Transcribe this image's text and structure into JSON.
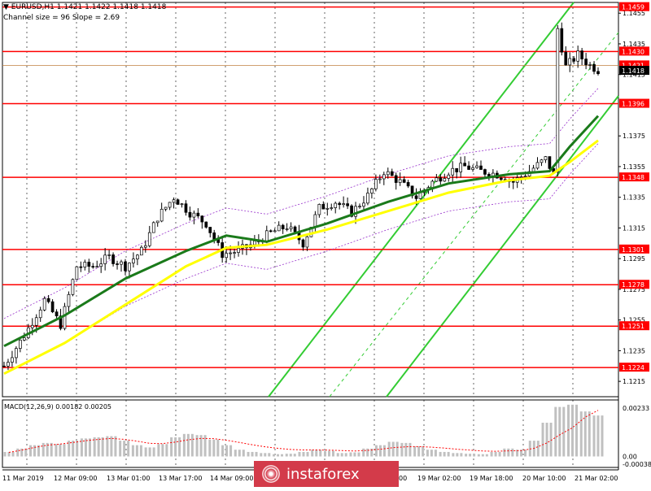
{
  "header": {
    "line1": "EURUSD,H1  1.1421 1.1422 1.1418 1.1418",
    "line2": "Channel size = 96 Slope = 2.69"
  },
  "watermark": {
    "text": "instaforex"
  },
  "colors": {
    "bull_candle": "#000000",
    "bear_candle": "#000000",
    "level_line": "#ff0000",
    "level_tag_bg": "#ff0000",
    "ma_fast": "#1a7a1a",
    "ma_slow": "#ffff00",
    "channel": "#33cc33",
    "envelope": "#9933cc",
    "histogram": "#c0c0c0",
    "signal": "#ff0000",
    "grid": "#000000"
  },
  "chart_data": [
    {
      "type": "candlestick",
      "symbol": "EURUSD",
      "timeframe": "H1",
      "ohlc_last": {
        "open": 1.1421,
        "high": 1.1422,
        "low": 1.1418,
        "close": 1.1418
      },
      "channel": {
        "size": 96,
        "slope": 2.69
      },
      "ylim": [
        1.1205,
        1.1462
      ],
      "y_ticks": [
        "1.1459",
        "1.1455",
        "1.1435",
        "1.1430",
        "1.1421",
        "1.1418",
        "1.1415",
        "1.1396",
        "1.1375",
        "1.1355",
        "1.1348",
        "1.1335",
        "1.1315",
        "1.1301",
        "1.1295",
        "1.1278",
        "1.1275",
        "1.1255",
        "1.1251",
        "1.1235",
        "1.1224",
        "1.1215"
      ],
      "levels": [
        "1.1459",
        "1.1430",
        "1.1396",
        "1.1348",
        "1.1301",
        "1.1278",
        "1.1251",
        "1.1224"
      ],
      "current_price": "1.1418",
      "prev_price": "1.1421",
      "x_labels": [
        "11 Mar 2019",
        "12 Mar 09:00",
        "13 Mar 01:00",
        "13 Mar 17:00",
        "14 Mar 09:00",
        "",
        "",
        "19 Mar 02:00",
        "19 Mar 18:00",
        "20 Mar 10:00",
        "21 Mar 02:00"
      ],
      "visible_x_fragment": "00",
      "trend_series": [
        {
          "t": 0,
          "v": 1.1225
        },
        {
          "t": 5,
          "v": 1.1245
        },
        {
          "t": 10,
          "v": 1.1268
        },
        {
          "t": 14,
          "v": 1.1252
        },
        {
          "t": 18,
          "v": 1.129
        },
        {
          "t": 22,
          "v": 1.129
        },
        {
          "t": 26,
          "v": 1.1296
        },
        {
          "t": 30,
          "v": 1.129
        },
        {
          "t": 34,
          "v": 1.13
        },
        {
          "t": 38,
          "v": 1.1322
        },
        {
          "t": 42,
          "v": 1.1335
        },
        {
          "t": 46,
          "v": 1.1325
        },
        {
          "t": 50,
          "v": 1.1318
        },
        {
          "t": 54,
          "v": 1.1298
        },
        {
          "t": 58,
          "v": 1.13
        },
        {
          "t": 62,
          "v": 1.1305
        },
        {
          "t": 66,
          "v": 1.1312
        },
        {
          "t": 70,
          "v": 1.1316
        },
        {
          "t": 74,
          "v": 1.1305
        },
        {
          "t": 78,
          "v": 1.1328
        },
        {
          "t": 82,
          "v": 1.1332
        },
        {
          "t": 86,
          "v": 1.1325
        },
        {
          "t": 90,
          "v": 1.1336
        },
        {
          "t": 94,
          "v": 1.1352
        },
        {
          "t": 98,
          "v": 1.1345
        },
        {
          "t": 102,
          "v": 1.1335
        },
        {
          "t": 106,
          "v": 1.1345
        },
        {
          "t": 110,
          "v": 1.1352
        },
        {
          "t": 114,
          "v": 1.1355
        },
        {
          "t": 118,
          "v": 1.1352
        },
        {
          "t": 122,
          "v": 1.135
        },
        {
          "t": 126,
          "v": 1.1345
        },
        {
          "t": 130,
          "v": 1.1352
        },
        {
          "t": 134,
          "v": 1.136
        },
        {
          "t": 136,
          "v": 1.135
        },
        {
          "t": 137,
          "v": 1.1445
        },
        {
          "t": 139,
          "v": 1.142
        },
        {
          "t": 142,
          "v": 1.1428
        },
        {
          "t": 145,
          "v": 1.1421
        },
        {
          "t": 147,
          "v": 1.1418
        }
      ],
      "ma_fast": [
        {
          "t": 0,
          "v": 1.1238
        },
        {
          "t": 15,
          "v": 1.1258
        },
        {
          "t": 30,
          "v": 1.1282
        },
        {
          "t": 45,
          "v": 1.13
        },
        {
          "t": 55,
          "v": 1.131
        },
        {
          "t": 65,
          "v": 1.1306
        },
        {
          "t": 80,
          "v": 1.1318
        },
        {
          "t": 95,
          "v": 1.1332
        },
        {
          "t": 110,
          "v": 1.1344
        },
        {
          "t": 125,
          "v": 1.135
        },
        {
          "t": 135,
          "v": 1.1352
        },
        {
          "t": 140,
          "v": 1.1368
        },
        {
          "t": 147,
          "v": 1.1388
        }
      ],
      "ma_slow": [
        {
          "t": 0,
          "v": 1.122
        },
        {
          "t": 15,
          "v": 1.124
        },
        {
          "t": 30,
          "v": 1.1265
        },
        {
          "t": 45,
          "v": 1.129
        },
        {
          "t": 55,
          "v": 1.1302
        },
        {
          "t": 65,
          "v": 1.1304
        },
        {
          "t": 80,
          "v": 1.1314
        },
        {
          "t": 95,
          "v": 1.1326
        },
        {
          "t": 110,
          "v": 1.1338
        },
        {
          "t": 125,
          "v": 1.1346
        },
        {
          "t": 135,
          "v": 1.1349
        },
        {
          "t": 140,
          "v": 1.1358
        },
        {
          "t": 147,
          "v": 1.1372
        }
      ],
      "macd": {
        "label": "MACD(12,26,9) 0.00182 0.00205",
        "ylim": [
          -0.00038,
          0.00233
        ],
        "y_ticks": [
          "0.00233",
          "0.00",
          "-0.00038"
        ],
        "histogram": [
          0.0002,
          0.00035,
          0.0005,
          0.0006,
          0.00055,
          0.0007,
          0.0008,
          0.00085,
          0.0009,
          0.0007,
          0.0005,
          0.0004,
          0.00055,
          0.00085,
          0.001,
          0.00095,
          0.00075,
          0.0005,
          0.0003,
          0.0002,
          0.00015,
          0.0001,
          0.00012,
          0.0002,
          0.0003,
          0.00025,
          0.00015,
          0.00018,
          0.00035,
          0.0005,
          0.00065,
          0.0006,
          0.00045,
          0.0003,
          0.0002,
          0.00015,
          0.00012,
          0.0001,
          0.0002,
          0.00035,
          0.0003,
          0.0007,
          0.0015,
          0.0022,
          0.0023,
          0.002,
          0.00182
        ],
        "signal": [
          0.00018,
          0.00028,
          0.0004,
          0.0005,
          0.00055,
          0.00062,
          0.0007,
          0.00076,
          0.0008,
          0.00076,
          0.00068,
          0.00058,
          0.00057,
          0.00064,
          0.00074,
          0.0008,
          0.00079,
          0.00072,
          0.00062,
          0.00052,
          0.00043,
          0.00036,
          0.00031,
          0.00029,
          0.00029,
          0.00028,
          0.00026,
          0.00024,
          0.00027,
          0.00032,
          0.00039,
          0.00043,
          0.00044,
          0.00041,
          0.00037,
          0.00032,
          0.00028,
          0.00024,
          0.00023,
          0.00025,
          0.00026,
          0.00036,
          0.0006,
          0.00096,
          0.00128,
          0.00175,
          0.00205
        ]
      }
    }
  ]
}
